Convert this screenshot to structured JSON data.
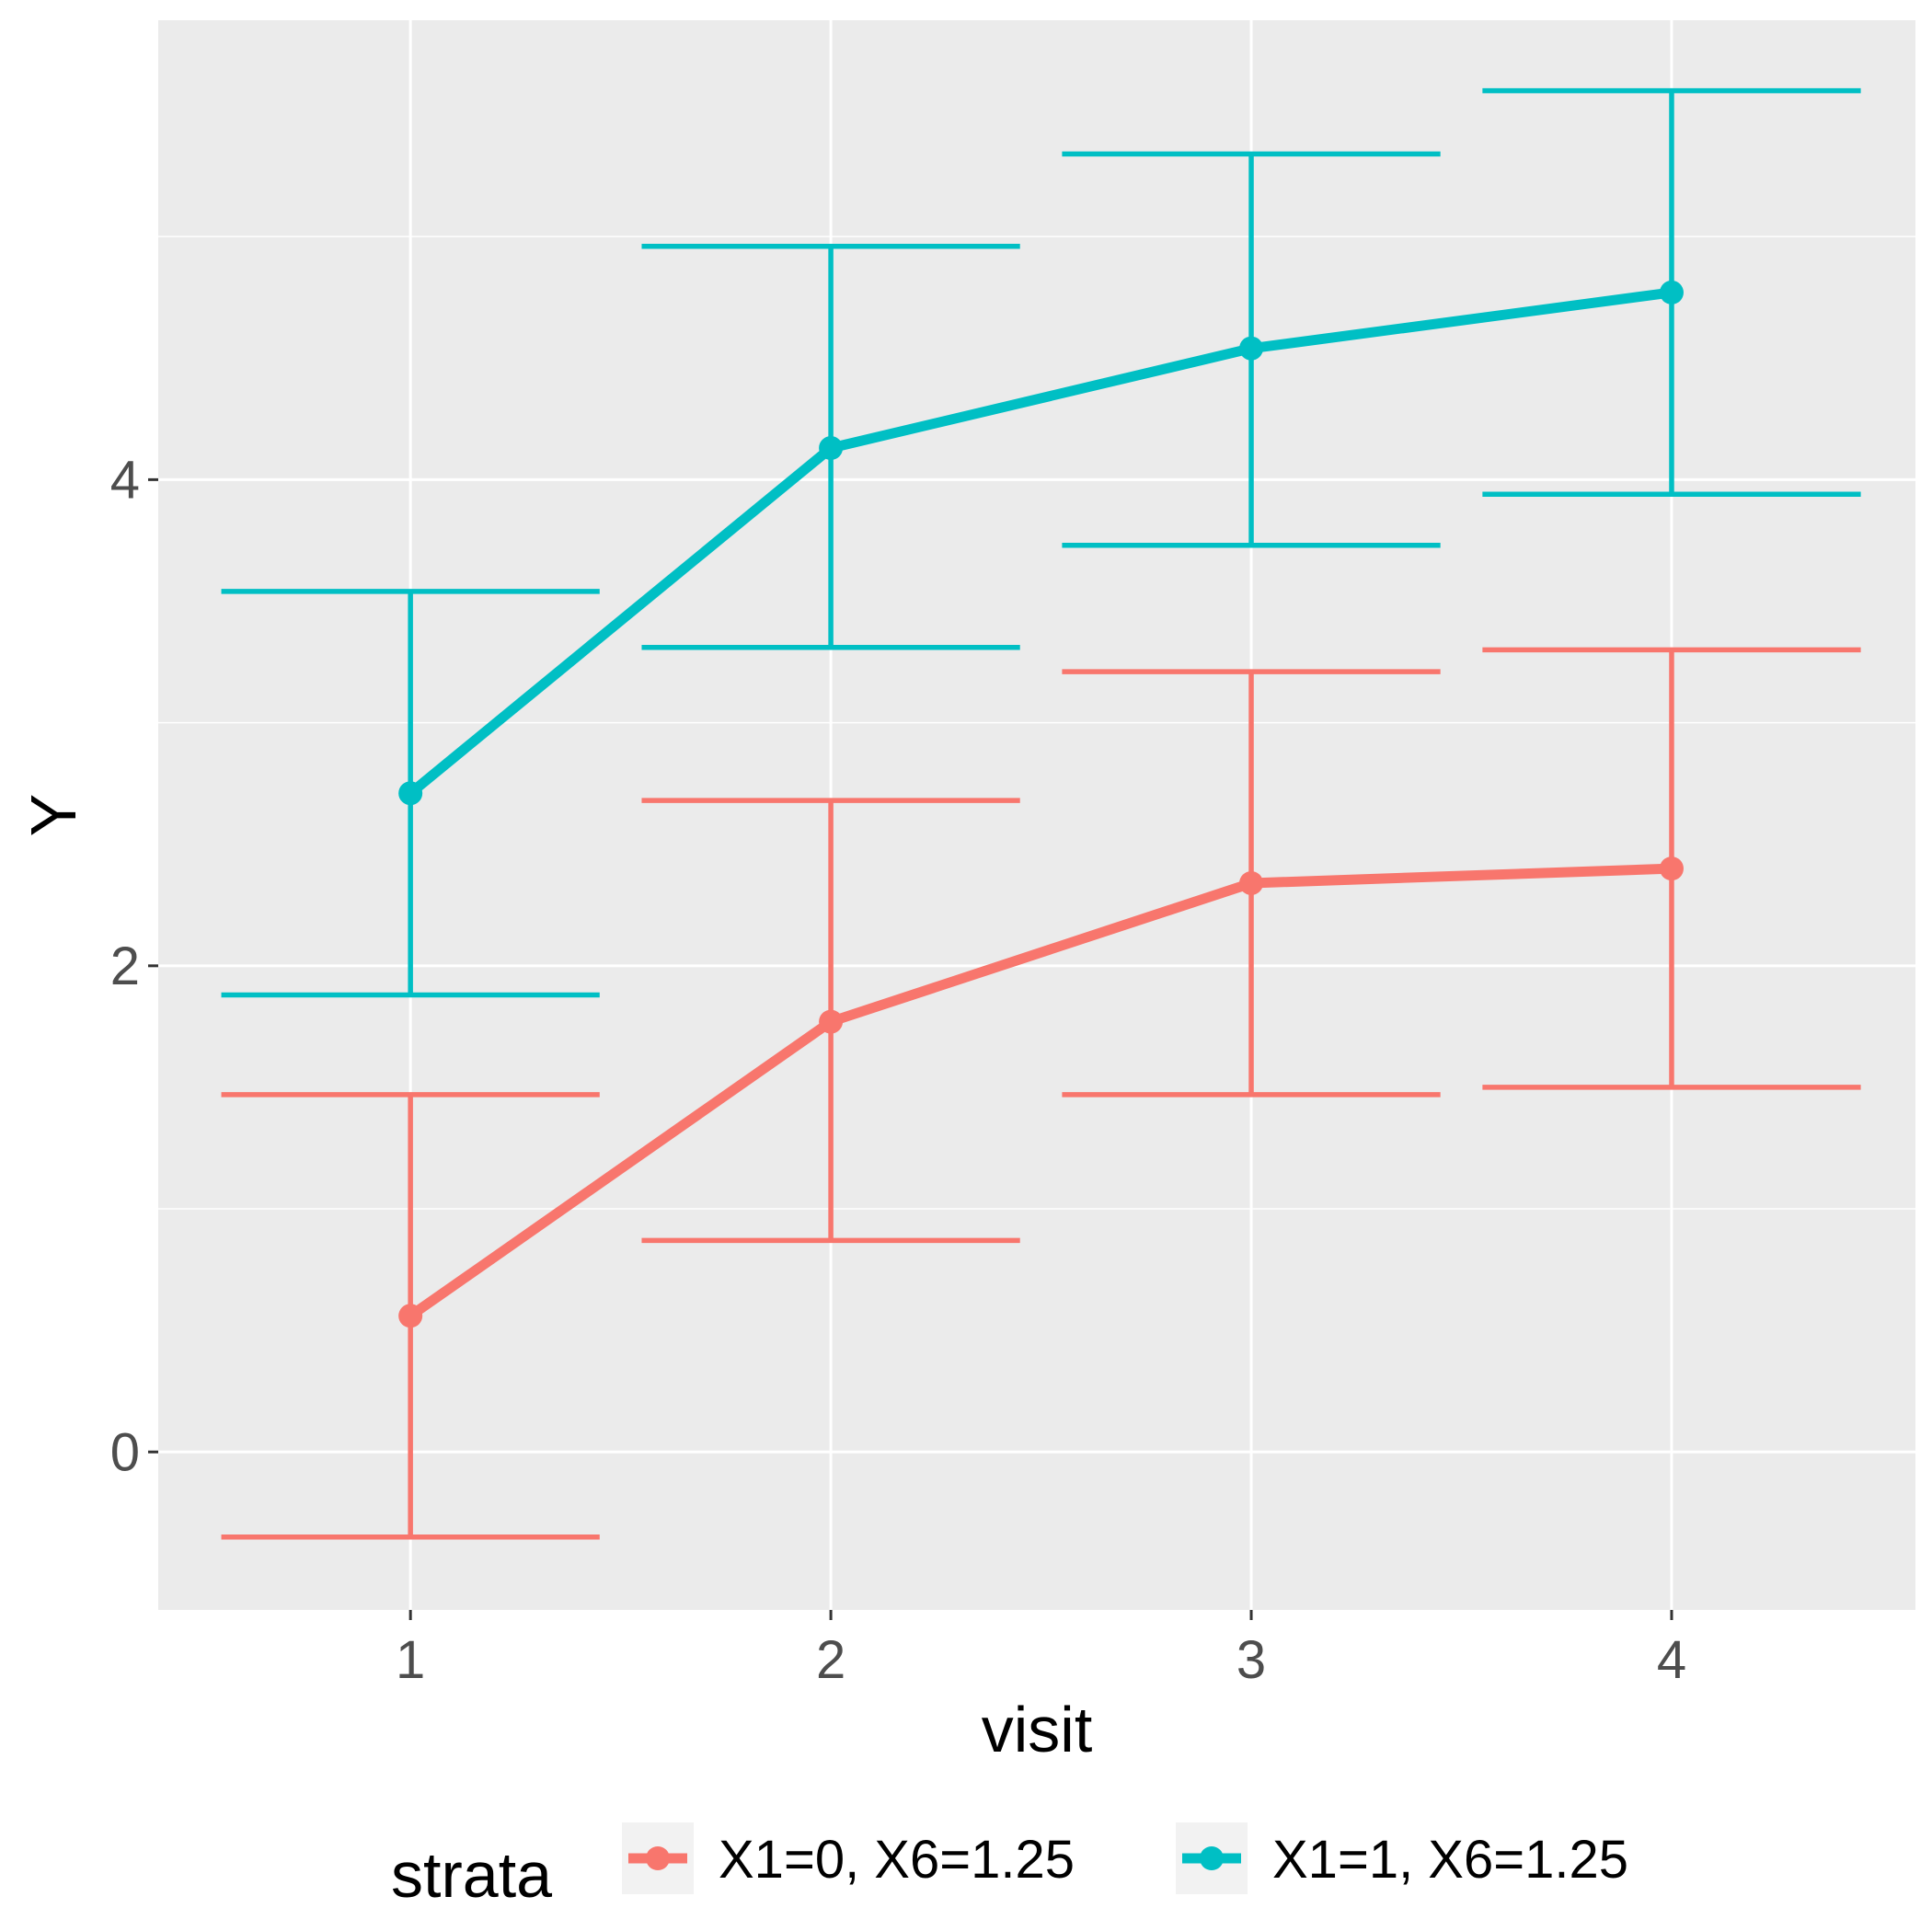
{
  "chart_data": {
    "type": "line",
    "xlabel": "visit",
    "ylabel": "Y",
    "x": [
      1,
      2,
      3,
      4
    ],
    "x_ticks": [
      "1",
      "2",
      "3",
      "4"
    ],
    "y_ticks": [
      "0",
      "2",
      "4"
    ],
    "xlim": [
      0.4,
      4.58
    ],
    "ylim": [
      -0.65,
      5.89
    ],
    "grid": true,
    "panel_background": "#ebebeb",
    "legend": {
      "title": "strata",
      "position": "bottom"
    },
    "series": [
      {
        "name": "X1=0, X6=1.25",
        "color": "#f8766d",
        "values": [
          0.56,
          1.77,
          2.34,
          2.4
        ],
        "lower": [
          -0.35,
          0.87,
          1.47,
          1.5
        ],
        "upper": [
          1.47,
          2.68,
          3.21,
          3.3
        ]
      },
      {
        "name": "X1=1, X6=1.25",
        "color": "#00bfc4",
        "values": [
          2.71,
          4.13,
          4.54,
          4.77
        ],
        "lower": [
          1.88,
          3.31,
          3.73,
          3.94
        ],
        "upper": [
          3.54,
          4.96,
          5.34,
          5.6
        ]
      }
    ]
  }
}
